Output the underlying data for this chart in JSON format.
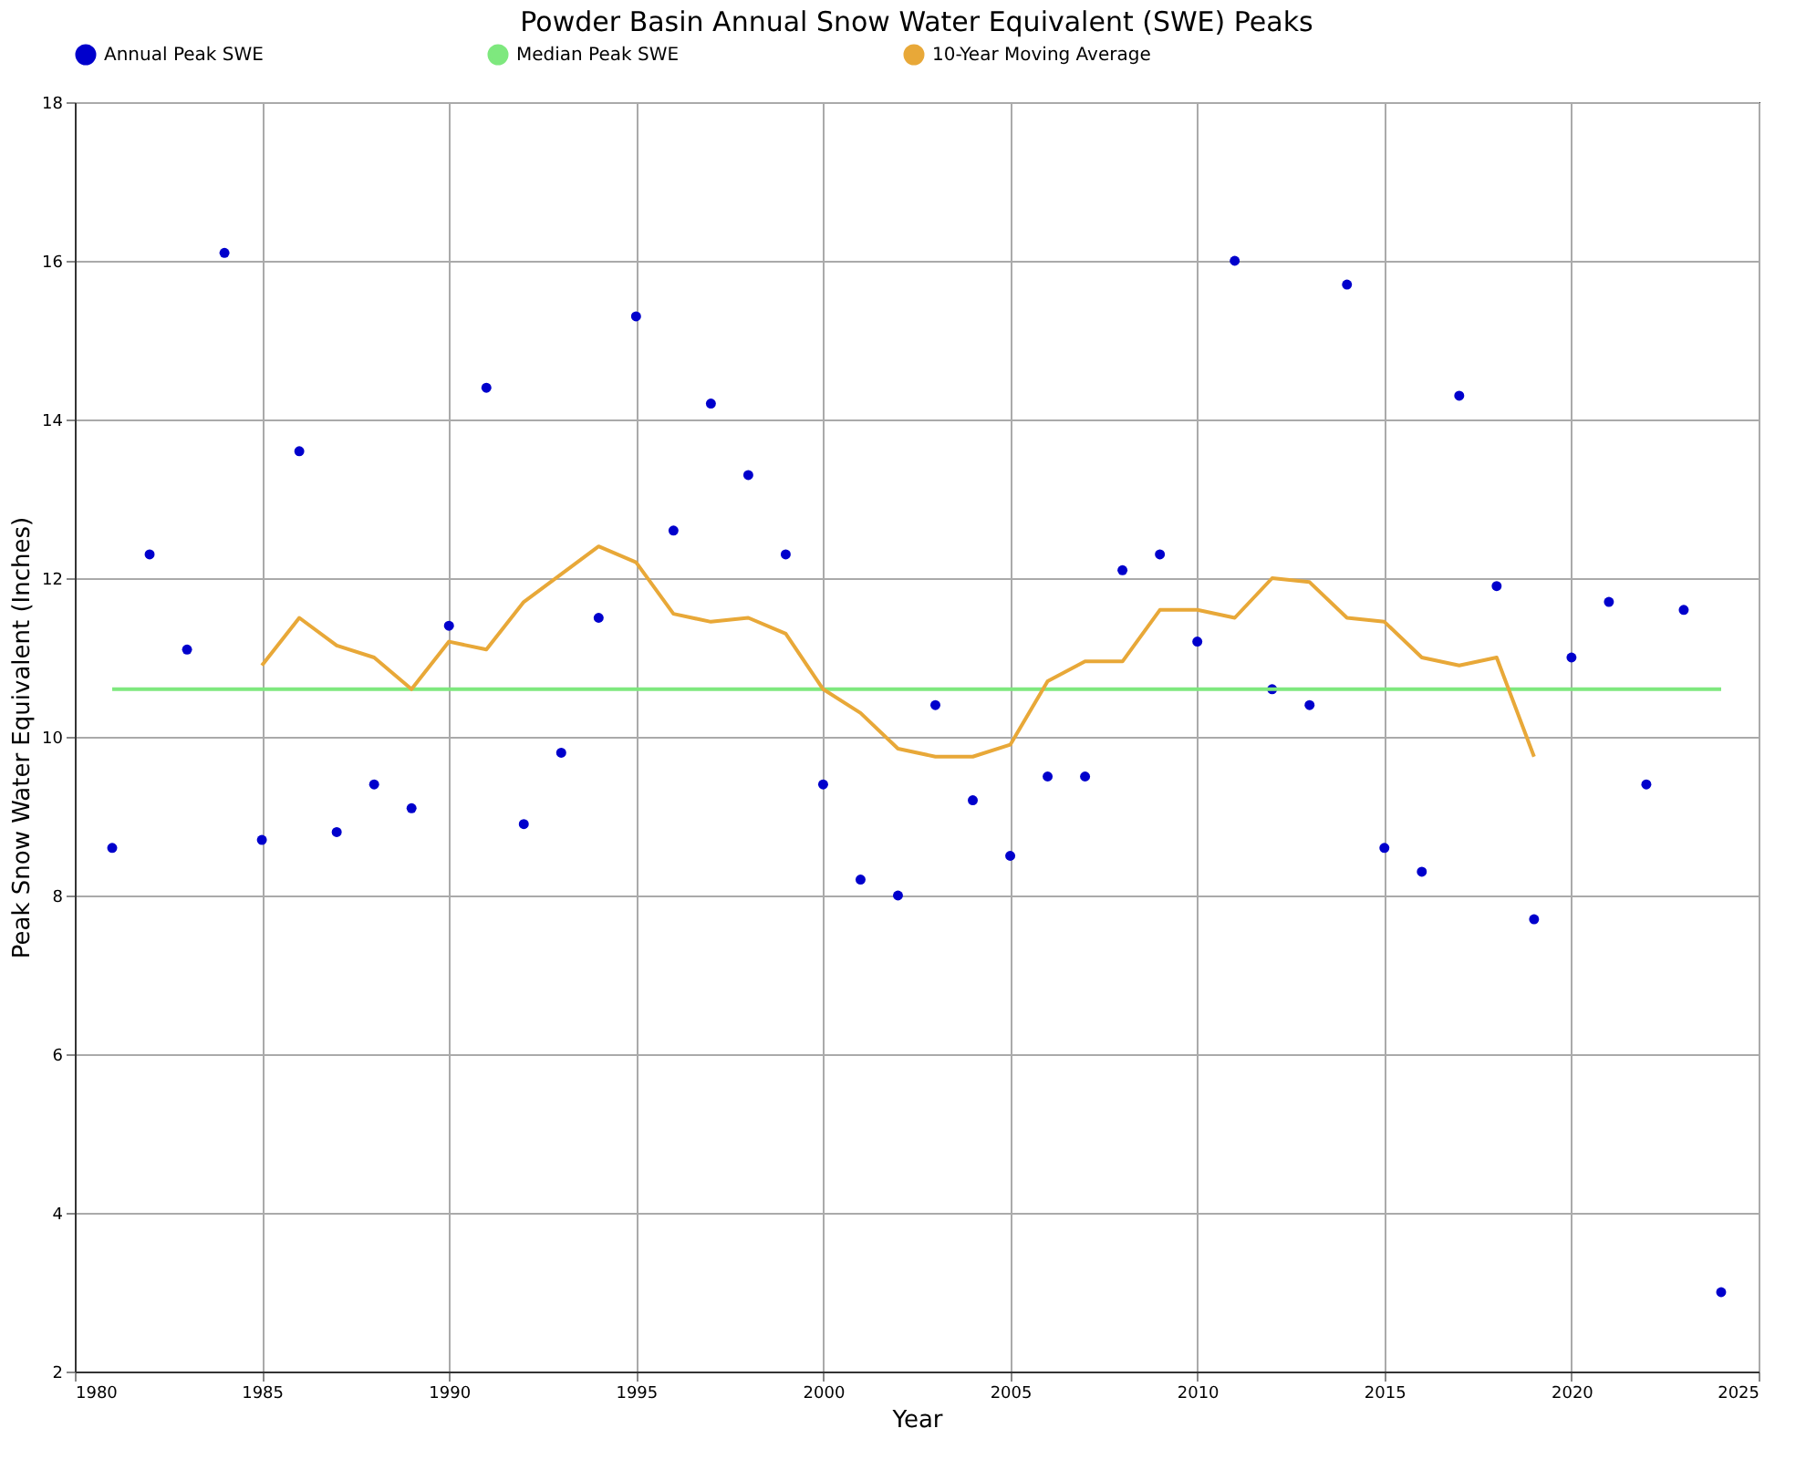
{
  "chart_data": {
    "type": "scatter",
    "title": "Powder Basin Annual Snow Water Equivalent (SWE) Peaks",
    "xlabel": "Year",
    "ylabel": "Peak Snow Water Equivalent (Inches)",
    "xlim": [
      1980,
      2025
    ],
    "xticks": [
      1980,
      1985,
      1990,
      1995,
      2000,
      2005,
      2010,
      2015,
      2020,
      2025
    ],
    "ylim": [
      2,
      18
    ],
    "yticks": [
      2,
      4,
      6,
      8,
      10,
      12,
      14,
      16,
      18
    ],
    "grid": true,
    "legend": "top",
    "series": [
      {
        "name": "Annual Peak SWE",
        "marker": "circle",
        "color": "#0000cc",
        "x": [
          1981,
          1982,
          1983,
          1984,
          1985,
          1986,
          1987,
          1988,
          1989,
          1990,
          1991,
          1992,
          1993,
          1994,
          1995,
          1996,
          1997,
          1998,
          1999,
          2000,
          2001,
          2002,
          2003,
          2004,
          2005,
          2006,
          2007,
          2008,
          2009,
          2010,
          2011,
          2012,
          2013,
          2014,
          2015,
          2016,
          2017,
          2018,
          2019,
          2020,
          2021,
          2022,
          2023,
          2024
        ],
        "values": [
          8.6,
          12.3,
          11.1,
          16.1,
          8.7,
          13.6,
          8.8,
          9.4,
          9.1,
          11.4,
          14.4,
          8.9,
          9.8,
          11.5,
          15.3,
          12.6,
          14.2,
          13.3,
          12.3,
          9.4,
          8.2,
          8.0,
          10.4,
          9.2,
          8.5,
          9.5,
          9.5,
          12.1,
          12.3,
          11.2,
          16.0,
          10.6,
          10.4,
          15.7,
          8.6,
          8.3,
          14.3,
          11.9,
          7.7,
          11.0,
          11.7,
          9.4,
          11.6,
          3.0
        ]
      },
      {
        "name": "Median Peak SWE",
        "type": "line",
        "color": "#7ee87e",
        "x": [
          1981,
          2024
        ],
        "values": [
          10.6,
          10.6
        ]
      },
      {
        "name": "10-Year Moving Average",
        "type": "line",
        "color": "#e8a838",
        "x": [
          1985,
          1986,
          1987,
          1988,
          1989,
          1990,
          1991,
          1992,
          1993,
          1994,
          1995,
          1996,
          1997,
          1998,
          1999,
          2000,
          2001,
          2002,
          2003,
          2004,
          2005,
          2006,
          2007,
          2008,
          2009,
          2010,
          2011,
          2012,
          2013,
          2014,
          2015,
          2016,
          2017,
          2018,
          2019
        ],
        "values": [
          10.9,
          11.5,
          11.15,
          11.0,
          10.6,
          11.2,
          11.1,
          11.7,
          12.05,
          12.4,
          12.2,
          11.55,
          11.45,
          11.5,
          11.3,
          10.6,
          10.3,
          9.85,
          9.75,
          9.75,
          9.9,
          10.7,
          10.95,
          10.95,
          11.6,
          11.6,
          11.5,
          12.0,
          11.95,
          11.5,
          11.45,
          11.0,
          10.9,
          11.0,
          9.75
        ]
      }
    ]
  }
}
